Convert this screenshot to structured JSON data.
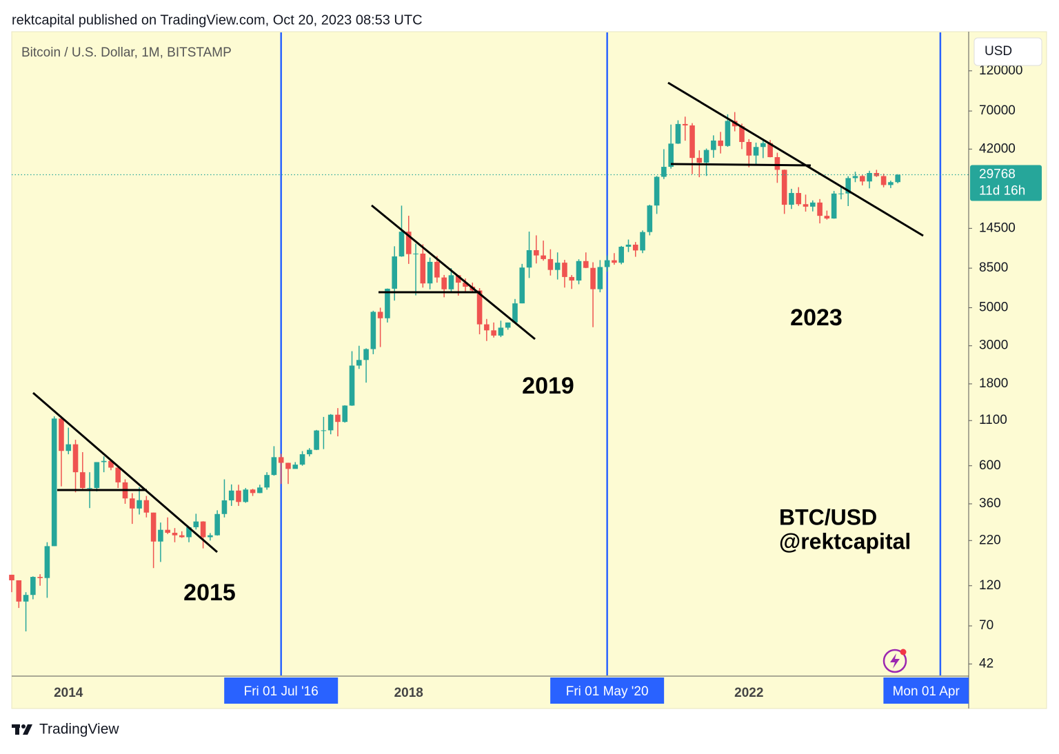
{
  "header": "rektcapital published on TradingView.com, Oct 20, 2023 08:53 UTC",
  "footer": "TradingView",
  "chart_data": {
    "type": "candlestick",
    "title": "Bitcoin / U.S. Dollar, 1M, BITSTAMP",
    "currency": "USD",
    "log_scale": true,
    "up_color": "#26a69a",
    "down_color": "#ef5350",
    "marker_color": "#2962ff",
    "ylim": [
      36,
      201000
    ],
    "yticks": [
      42,
      70,
      120,
      220,
      360,
      600,
      1100,
      1800,
      3000,
      5000,
      8500,
      14500,
      42000,
      70000,
      120000
    ],
    "xlim": [
      "2013-05",
      "2024-08"
    ],
    "xticks": [
      "2014",
      "2018",
      "2022"
    ],
    "markers": [
      {
        "x": "2016-07",
        "label": "Fri 01 Jul '16"
      },
      {
        "x": "2020-05",
        "label": "Fri 01 May '20"
      },
      {
        "x": "2024-04",
        "label": "Mon 01 Apr"
      }
    ],
    "countdown": "11d 16h",
    "annotations": [
      "2015",
      "2019",
      "2023",
      "BTC/USD",
      "@rektcapital"
    ],
    "x": [
      "2013-05",
      "2013-06",
      "2013-07",
      "2013-08",
      "2013-09",
      "2013-10",
      "2013-11",
      "2013-12",
      "2014-01",
      "2014-02",
      "2014-03",
      "2014-04",
      "2014-05",
      "2014-06",
      "2014-07",
      "2014-08",
      "2014-09",
      "2014-10",
      "2014-11",
      "2014-12",
      "2015-01",
      "2015-02",
      "2015-03",
      "2015-04",
      "2015-05",
      "2015-06",
      "2015-07",
      "2015-08",
      "2015-09",
      "2015-10",
      "2015-11",
      "2015-12",
      "2016-01",
      "2016-02",
      "2016-03",
      "2016-04",
      "2016-05",
      "2016-06",
      "2016-07",
      "2016-08",
      "2016-09",
      "2016-10",
      "2016-11",
      "2016-12",
      "2017-01",
      "2017-02",
      "2017-03",
      "2017-04",
      "2017-05",
      "2017-06",
      "2017-07",
      "2017-08",
      "2017-09",
      "2017-10",
      "2017-11",
      "2017-12",
      "2018-01",
      "2018-02",
      "2018-03",
      "2018-04",
      "2018-05",
      "2018-06",
      "2018-07",
      "2018-08",
      "2018-09",
      "2018-10",
      "2018-11",
      "2018-12",
      "2019-01",
      "2019-02",
      "2019-03",
      "2019-04",
      "2019-05",
      "2019-06",
      "2019-07",
      "2019-08",
      "2019-09",
      "2019-10",
      "2019-11",
      "2019-12",
      "2020-01",
      "2020-02",
      "2020-03",
      "2020-04",
      "2020-05",
      "2020-06",
      "2020-07",
      "2020-08",
      "2020-09",
      "2020-10",
      "2020-11",
      "2020-12",
      "2021-01",
      "2021-02",
      "2021-03",
      "2021-04",
      "2021-05",
      "2021-06",
      "2021-07",
      "2021-08",
      "2021-09",
      "2021-10",
      "2021-11",
      "2021-12",
      "2022-01",
      "2022-02",
      "2022-03",
      "2022-04",
      "2022-05",
      "2022-06",
      "2022-07",
      "2022-08",
      "2022-09",
      "2022-10",
      "2022-11",
      "2022-12",
      "2023-01",
      "2023-02",
      "2023-03",
      "2023-04",
      "2023-05",
      "2023-06",
      "2023-07",
      "2023-08",
      "2023-09",
      "2023-10"
    ],
    "ohlc": [
      [
        139,
        139,
        110,
        129
      ],
      [
        129,
        129,
        89,
        97
      ],
      [
        97,
        110,
        65,
        106
      ],
      [
        106,
        136,
        100,
        135
      ],
      [
        135,
        140,
        120,
        133
      ],
      [
        133,
        215,
        102,
        204
      ],
      [
        204,
        1163,
        204,
        1130
      ],
      [
        1130,
        1165,
        455,
        732
      ],
      [
        732,
        1000,
        700,
        800
      ],
      [
        800,
        850,
        420,
        550
      ],
      [
        550,
        720,
        440,
        445
      ],
      [
        445,
        550,
        340,
        445
      ],
      [
        445,
        630,
        425,
        630
      ],
      [
        630,
        680,
        550,
        640
      ],
      [
        640,
        655,
        565,
        585
      ],
      [
        585,
        600,
        445,
        480
      ],
      [
        480,
        500,
        360,
        387
      ],
      [
        387,
        415,
        275,
        338
      ],
      [
        338,
        450,
        312,
        378
      ],
      [
        378,
        400,
        300,
        320
      ],
      [
        320,
        320,
        152,
        217
      ],
      [
        217,
        280,
        165,
        254
      ],
      [
        254,
        300,
        240,
        244
      ],
      [
        244,
        260,
        215,
        236
      ],
      [
        236,
        249,
        228,
        230
      ],
      [
        230,
        265,
        215,
        263
      ],
      [
        263,
        315,
        255,
        284
      ],
      [
        284,
        285,
        198,
        230
      ],
      [
        230,
        243,
        220,
        236
      ],
      [
        236,
        330,
        235,
        314
      ],
      [
        314,
        500,
        300,
        377
      ],
      [
        377,
        467,
        350,
        430
      ],
      [
        430,
        465,
        350,
        369
      ],
      [
        369,
        445,
        365,
        436
      ],
      [
        436,
        440,
        400,
        416
      ],
      [
        416,
        465,
        415,
        448
      ],
      [
        448,
        550,
        435,
        530
      ],
      [
        530,
        780,
        525,
        673
      ],
      [
        673,
        704,
        470,
        624
      ],
      [
        624,
        625,
        470,
        575
      ],
      [
        575,
        630,
        590,
        609
      ],
      [
        609,
        730,
        600,
        700
      ],
      [
        700,
        760,
        680,
        743
      ],
      [
        743,
        970,
        740,
        963
      ],
      [
        963,
        1155,
        750,
        965
      ],
      [
        965,
        1200,
        915,
        1190
      ],
      [
        1190,
        1300,
        890,
        1080
      ],
      [
        1080,
        1350,
        1070,
        1345
      ],
      [
        1345,
        2790,
        1340,
        2300
      ],
      [
        2300,
        3000,
        2200,
        2480
      ],
      [
        2480,
        2900,
        1830,
        2870
      ],
      [
        2870,
        4800,
        2680,
        4730
      ],
      [
        4730,
        5000,
        2950,
        4340
      ],
      [
        4340,
        6470,
        4100,
        6450
      ],
      [
        6450,
        11400,
        5500,
        9950
      ],
      [
        9950,
        19666,
        9900,
        13860
      ],
      [
        13860,
        17170,
        9000,
        10265
      ],
      [
        10265,
        11800,
        5900,
        10330
      ],
      [
        10330,
        11700,
        6550,
        6925
      ],
      [
        6925,
        9800,
        6400,
        9250
      ],
      [
        9250,
        10000,
        7000,
        7500
      ],
      [
        7500,
        7760,
        5750,
        6400
      ],
      [
        6400,
        8500,
        6100,
        7730
      ],
      [
        7730,
        7750,
        5880,
        7000
      ],
      [
        7000,
        7400,
        6100,
        6625
      ],
      [
        6625,
        7000,
        6200,
        6300
      ],
      [
        6300,
        6500,
        3500,
        4000
      ],
      [
        4000,
        4300,
        3200,
        3690
      ],
      [
        3690,
        4100,
        3350,
        3440
      ],
      [
        3440,
        4200,
        3370,
        3825
      ],
      [
        3825,
        4100,
        3720,
        4100
      ],
      [
        4100,
        5620,
        4080,
        5300
      ],
      [
        5300,
        9000,
        5300,
        8570
      ],
      [
        8570,
        13880,
        7450,
        10820
      ],
      [
        10820,
        13200,
        9050,
        10080
      ],
      [
        10080,
        12300,
        9400,
        9600
      ],
      [
        9600,
        10950,
        7700,
        8300
      ],
      [
        8300,
        10500,
        7300,
        9150
      ],
      [
        9150,
        9500,
        6550,
        7550
      ],
      [
        7550,
        7750,
        6430,
        7200
      ],
      [
        7200,
        9580,
        6850,
        9350
      ],
      [
        9350,
        10500,
        8500,
        8530
      ],
      [
        8530,
        9200,
        3850,
        6410
      ],
      [
        6410,
        9470,
        6150,
        8630
      ],
      [
        8630,
        10080,
        8100,
        9450
      ],
      [
        9450,
        10400,
        8900,
        9140
      ],
      [
        9140,
        11450,
        8950,
        11330
      ],
      [
        11330,
        12480,
        10550,
        11650
      ],
      [
        11650,
        12070,
        9900,
        10780
      ],
      [
        10780,
        14100,
        10400,
        13800
      ],
      [
        13800,
        19900,
        13200,
        19700
      ],
      [
        19700,
        29300,
        17600,
        28950
      ],
      [
        28950,
        41950,
        28100,
        33100
      ],
      [
        33100,
        58350,
        32300,
        45200
      ],
      [
        45200,
        61800,
        45000,
        58800
      ],
      [
        58800,
        64900,
        47000,
        57700
      ],
      [
        57700,
        59500,
        30000,
        37300
      ],
      [
        37300,
        41300,
        28800,
        35000
      ],
      [
        35000,
        42300,
        29300,
        41500
      ],
      [
        41500,
        50500,
        37400,
        47100
      ],
      [
        47100,
        52900,
        39600,
        43800
      ],
      [
        43800,
        67000,
        43300,
        61300
      ],
      [
        61300,
        69000,
        53300,
        57000
      ],
      [
        57000,
        59100,
        42000,
        46200
      ],
      [
        46200,
        48000,
        32900,
        38500
      ],
      [
        38500,
        45800,
        34300,
        43200
      ],
      [
        43200,
        48200,
        37200,
        45500
      ],
      [
        45500,
        47400,
        37600,
        37700
      ],
      [
        37700,
        40000,
        26700,
        31800
      ],
      [
        31800,
        31900,
        17600,
        19900
      ],
      [
        19900,
        24650,
        18800,
        23300
      ],
      [
        23300,
        25200,
        19600,
        20050
      ],
      [
        20050,
        22800,
        18150,
        19400
      ],
      [
        19400,
        21100,
        18200,
        20500
      ],
      [
        20500,
        21480,
        15500,
        17150
      ],
      [
        17150,
        18400,
        16300,
        16550
      ],
      [
        16550,
        23950,
        16500,
        23130
      ],
      [
        23130,
        25250,
        21400,
        23150
      ],
      [
        23150,
        29200,
        19550,
        28450
      ],
      [
        28450,
        31000,
        26950,
        29250
      ],
      [
        29250,
        29800,
        25800,
        27200
      ],
      [
        27200,
        31400,
        24800,
        30470
      ],
      [
        30470,
        31800,
        28900,
        29230
      ],
      [
        29230,
        30200,
        25150,
        25940
      ],
      [
        25940,
        27500,
        24900,
        26960
      ],
      [
        26960,
        30000,
        26550,
        29768
      ]
    ]
  }
}
